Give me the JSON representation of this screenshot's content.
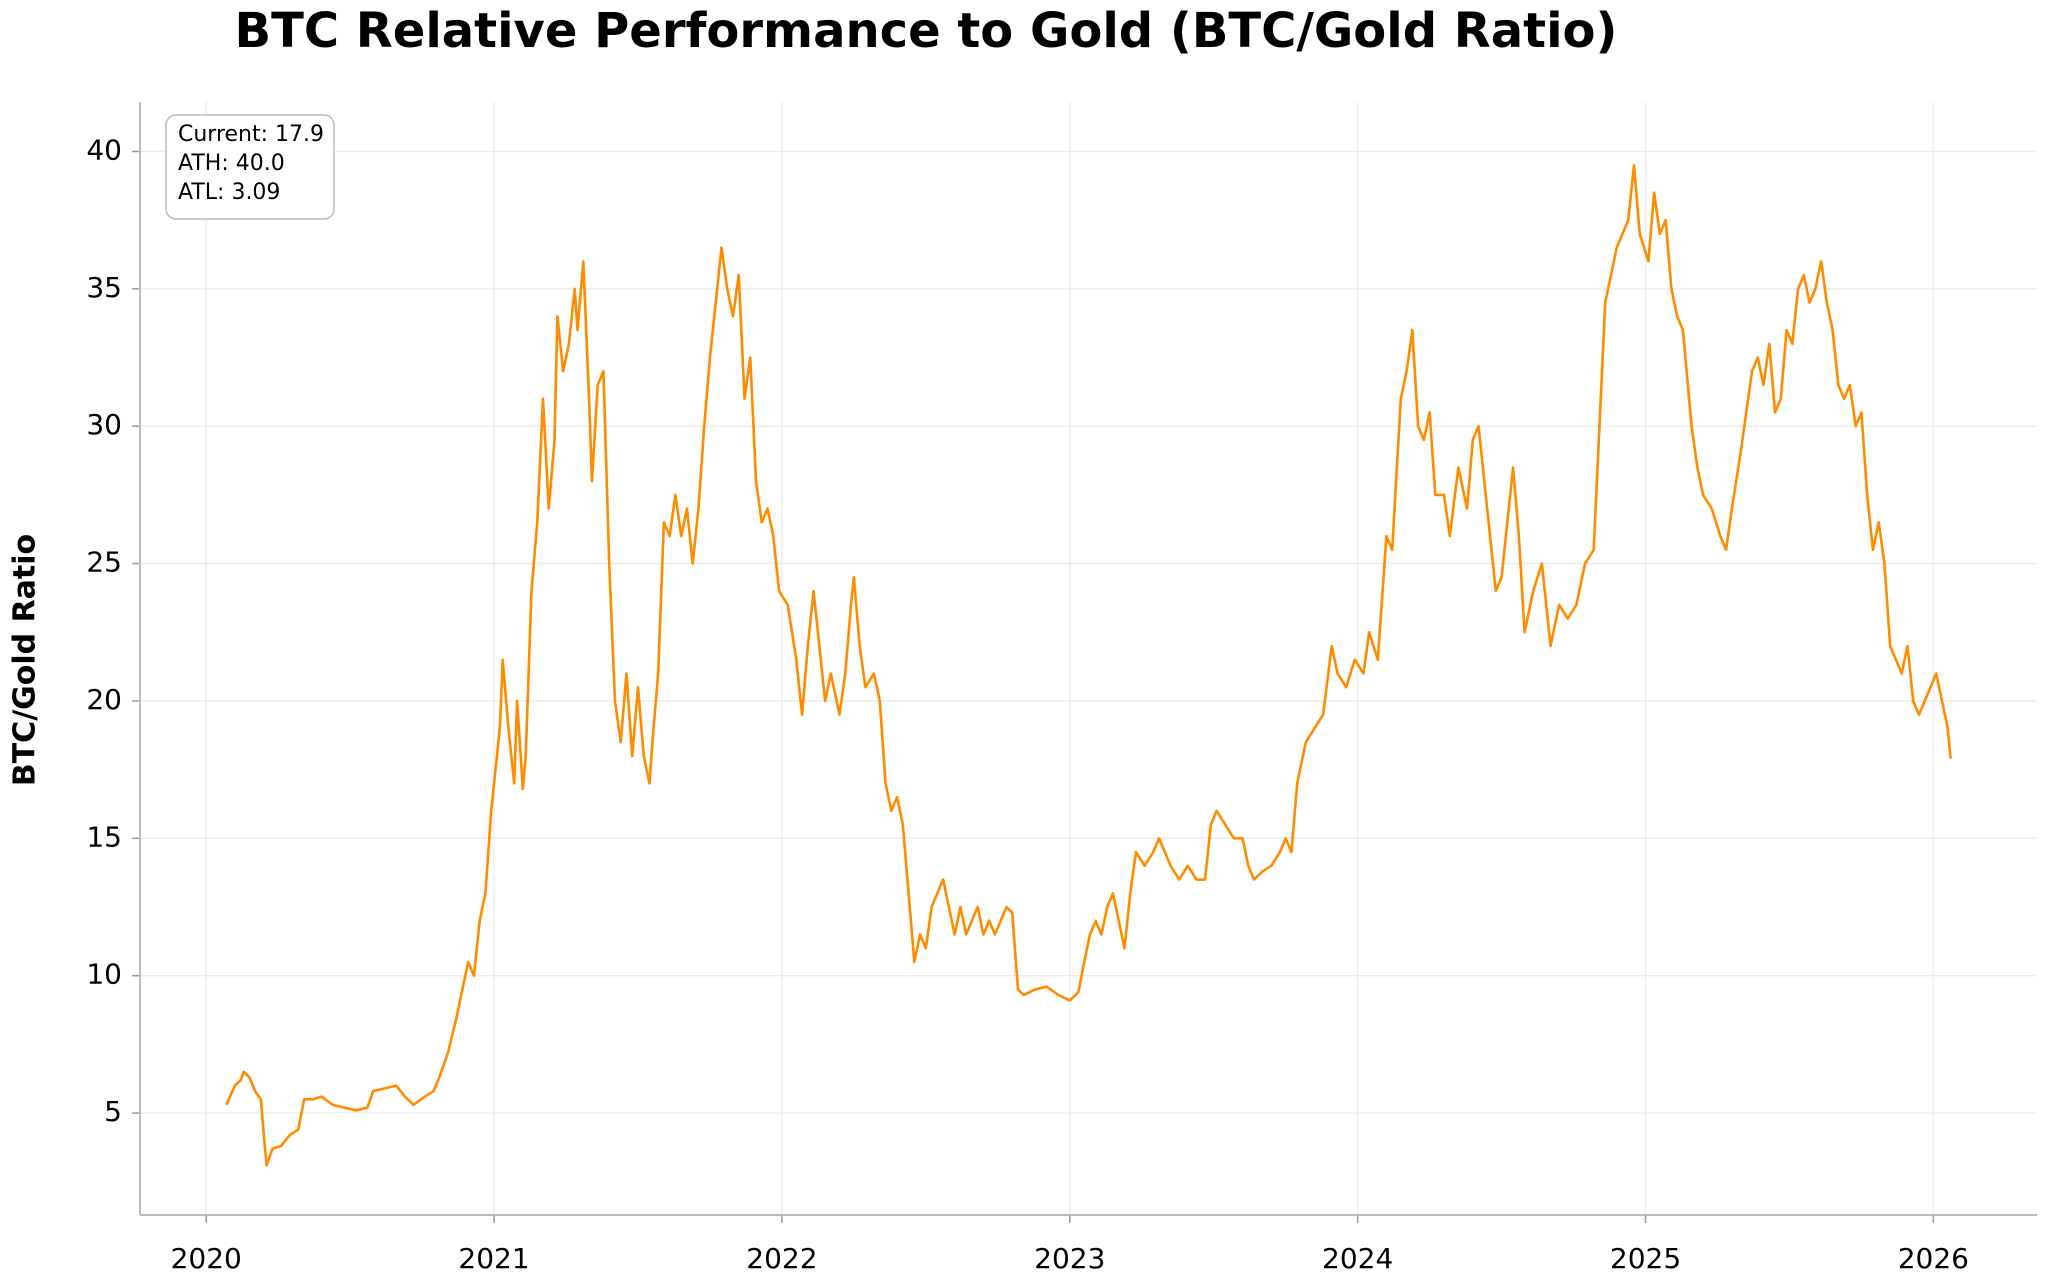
{
  "chart_data": {
    "type": "line",
    "title": "BTC Relative Performance to Gold (BTC/Gold Ratio)",
    "ylabel": "BTC/Gold Ratio",
    "annotations": [
      "Current: 17.9",
      "ATH: 40.0",
      "ATL: 3.09"
    ],
    "color": "#ff8c00",
    "grid": true,
    "xlim": [
      2019.77,
      2026.36
    ],
    "xticks": [
      2020,
      2021,
      2022,
      2023,
      2024,
      2025,
      2026
    ],
    "ylim": [
      1.29,
      41.8
    ],
    "yticks": [
      5,
      10,
      15,
      20,
      25,
      30,
      35,
      40
    ],
    "x": [
      2020.07,
      2020.1,
      2020.12,
      2020.13,
      2020.15,
      2020.17,
      2020.19,
      2020.2,
      2020.21,
      2020.23,
      2020.26,
      2020.29,
      2020.32,
      2020.34,
      2020.37,
      2020.4,
      2020.44,
      2020.48,
      2020.52,
      2020.56,
      2020.58,
      2020.62,
      2020.66,
      2020.69,
      2020.72,
      2020.76,
      2020.79,
      2020.81,
      2020.84,
      2020.87,
      2020.89,
      2020.91,
      2020.93,
      2020.95,
      2020.97,
      2020.99,
      2021.02,
      2021.03,
      2021.05,
      2021.07,
      2021.08,
      2021.1,
      2021.11,
      2021.13,
      2021.15,
      2021.17,
      2021.19,
      2021.21,
      2021.22,
      2021.24,
      2021.26,
      2021.28,
      2021.29,
      2021.31,
      2021.33,
      2021.34,
      2021.36,
      2021.38,
      2021.4,
      2021.42,
      2021.44,
      2021.46,
      2021.48,
      2021.5,
      2021.52,
      2021.54,
      2021.55,
      2021.57,
      2021.59,
      2021.61,
      2021.63,
      2021.65,
      2021.67,
      2021.69,
      2021.71,
      2021.73,
      2021.75,
      2021.77,
      2021.79,
      2021.81,
      2021.83,
      2021.85,
      2021.87,
      2021.89,
      2021.91,
      2021.93,
      2021.95,
      2021.97,
      2021.99,
      2022.02,
      2022.05,
      2022.07,
      2022.09,
      2022.11,
      2022.13,
      2022.15,
      2022.17,
      2022.2,
      2022.22,
      2022.24,
      2022.25,
      2022.27,
      2022.29,
      2022.32,
      2022.34,
      2022.36,
      2022.38,
      2022.4,
      2022.42,
      2022.44,
      2022.46,
      2022.48,
      2022.5,
      2022.52,
      2022.54,
      2022.56,
      2022.58,
      2022.6,
      2022.62,
      2022.64,
      2022.66,
      2022.68,
      2022.7,
      2022.72,
      2022.74,
      2022.76,
      2022.78,
      2022.8,
      2022.82,
      2022.84,
      2022.88,
      2022.92,
      2022.96,
      2023.0,
      2023.03,
      2023.05,
      2023.07,
      2023.09,
      2023.11,
      2023.13,
      2023.15,
      2023.17,
      2023.19,
      2023.21,
      2023.23,
      2023.26,
      2023.29,
      2023.31,
      2023.33,
      2023.35,
      2023.38,
      2023.41,
      2023.44,
      2023.47,
      2023.49,
      2023.51,
      2023.54,
      2023.57,
      2023.6,
      2023.62,
      2023.64,
      2023.67,
      2023.7,
      2023.73,
      2023.75,
      2023.77,
      2023.79,
      2023.82,
      2023.85,
      2023.88,
      2023.91,
      2023.93,
      2023.96,
      2023.99,
      2024.02,
      2024.04,
      2024.07,
      2024.1,
      2024.12,
      2024.15,
      2024.17,
      2024.19,
      2024.21,
      2024.23,
      2024.25,
      2024.27,
      2024.3,
      2024.32,
      2024.35,
      2024.38,
      2024.4,
      2024.42,
      2024.44,
      2024.46,
      2024.48,
      2024.5,
      2024.52,
      2024.54,
      2024.56,
      2024.58,
      2024.61,
      2024.64,
      2024.67,
      2024.7,
      2024.73,
      2024.76,
      2024.79,
      2024.82,
      2024.84,
      2024.86,
      2024.88,
      2024.9,
      2024.92,
      2024.94,
      2024.96,
      2024.98,
      2025.01,
      2025.03,
      2025.05,
      2025.07,
      2025.09,
      2025.11,
      2025.13,
      2025.16,
      2025.18,
      2025.2,
      2025.23,
      2025.26,
      2025.28,
      2025.3,
      2025.33,
      2025.35,
      2025.37,
      2025.39,
      2025.41,
      2025.43,
      2025.45,
      2025.47,
      2025.49,
      2025.51,
      2025.53,
      2025.55,
      2025.57,
      2025.59,
      2025.61,
      2025.63,
      2025.65,
      2025.67,
      2025.69,
      2025.71,
      2025.73,
      2025.75,
      2025.77,
      2025.79,
      2025.81,
      2025.83,
      2025.85,
      2025.87,
      2025.89,
      2025.91,
      2025.93,
      2025.95,
      2025.97,
      2025.99,
      2026.01,
      2026.03,
      2026.05,
      2026.06
    ],
    "values": [
      5.3,
      6.0,
      6.2,
      6.5,
      6.3,
      5.8,
      5.5,
      4.2,
      3.1,
      3.7,
      3.8,
      4.2,
      4.4,
      5.5,
      5.5,
      5.6,
      5.3,
      5.2,
      5.1,
      5.2,
      5.8,
      5.9,
      6.0,
      5.6,
      5.3,
      5.6,
      5.8,
      6.3,
      7.2,
      8.5,
      9.5,
      10.5,
      10.0,
      12.0,
      13.0,
      16.0,
      19.0,
      21.5,
      19.0,
      17.0,
      20.0,
      16.8,
      18.0,
      24.0,
      26.5,
      31.0,
      27.0,
      29.5,
      34.0,
      32.0,
      33.0,
      35.0,
      33.5,
      36.0,
      31.0,
      28.0,
      31.5,
      32.0,
      25.0,
      20.0,
      18.5,
      21.0,
      18.0,
      20.5,
      18.0,
      17.0,
      18.5,
      21.0,
      26.5,
      26.0,
      27.5,
      26.0,
      27.0,
      25.0,
      27.0,
      30.0,
      32.5,
      34.5,
      36.5,
      35.0,
      34.0,
      35.5,
      31.0,
      32.5,
      28.0,
      26.5,
      27.0,
      26.0,
      24.0,
      23.5,
      21.5,
      19.5,
      22.0,
      24.0,
      22.0,
      20.0,
      21.0,
      19.5,
      21.0,
      23.5,
      24.5,
      22.0,
      20.5,
      21.0,
      20.0,
      17.0,
      16.0,
      16.5,
      15.5,
      13.0,
      10.5,
      11.5,
      11.0,
      12.5,
      13.0,
      13.5,
      12.5,
      11.5,
      12.5,
      11.5,
      12.0,
      12.5,
      11.5,
      12.0,
      11.5,
      12.0,
      12.5,
      12.3,
      9.5,
      9.3,
      9.5,
      9.6,
      9.3,
      9.1,
      9.4,
      10.5,
      11.5,
      12.0,
      11.5,
      12.5,
      13.0,
      12.0,
      11.0,
      13.0,
      14.5,
      14.0,
      14.5,
      15.0,
      14.5,
      14.0,
      13.5,
      14.0,
      13.5,
      13.5,
      15.5,
      16.0,
      15.5,
      15.0,
      15.0,
      14.0,
      13.5,
      13.8,
      14.0,
      14.5,
      15.0,
      14.5,
      17.0,
      18.5,
      19.0,
      19.5,
      22.0,
      21.0,
      20.5,
      21.5,
      21.0,
      22.5,
      21.5,
      26.0,
      25.5,
      31.0,
      32.0,
      33.5,
      30.0,
      29.5,
      30.5,
      27.5,
      27.5,
      26.0,
      28.5,
      27.0,
      29.5,
      30.0,
      28.0,
      26.0,
      24.0,
      24.5,
      26.5,
      28.5,
      26.0,
      22.5,
      24.0,
      25.0,
      22.0,
      23.5,
      23.0,
      23.5,
      25.0,
      25.5,
      30.0,
      34.5,
      35.5,
      36.5,
      37.0,
      37.5,
      39.5,
      37.0,
      36.0,
      38.5,
      37.0,
      37.5,
      35.0,
      34.0,
      33.5,
      30.0,
      28.5,
      27.5,
      27.0,
      26.0,
      25.5,
      27.0,
      29.0,
      30.5,
      32.0,
      32.5,
      31.5,
      33.0,
      30.5,
      31.0,
      33.5,
      33.0,
      35.0,
      35.5,
      34.5,
      35.0,
      36.0,
      34.5,
      33.5,
      31.5,
      31.0,
      31.5,
      30.0,
      30.5,
      27.5,
      25.5,
      26.5,
      25.0,
      22.0,
      21.5,
      21.0,
      22.0,
      20.0,
      19.5,
      20.0,
      20.5,
      21.0,
      20.0,
      19.0,
      17.9
    ]
  }
}
